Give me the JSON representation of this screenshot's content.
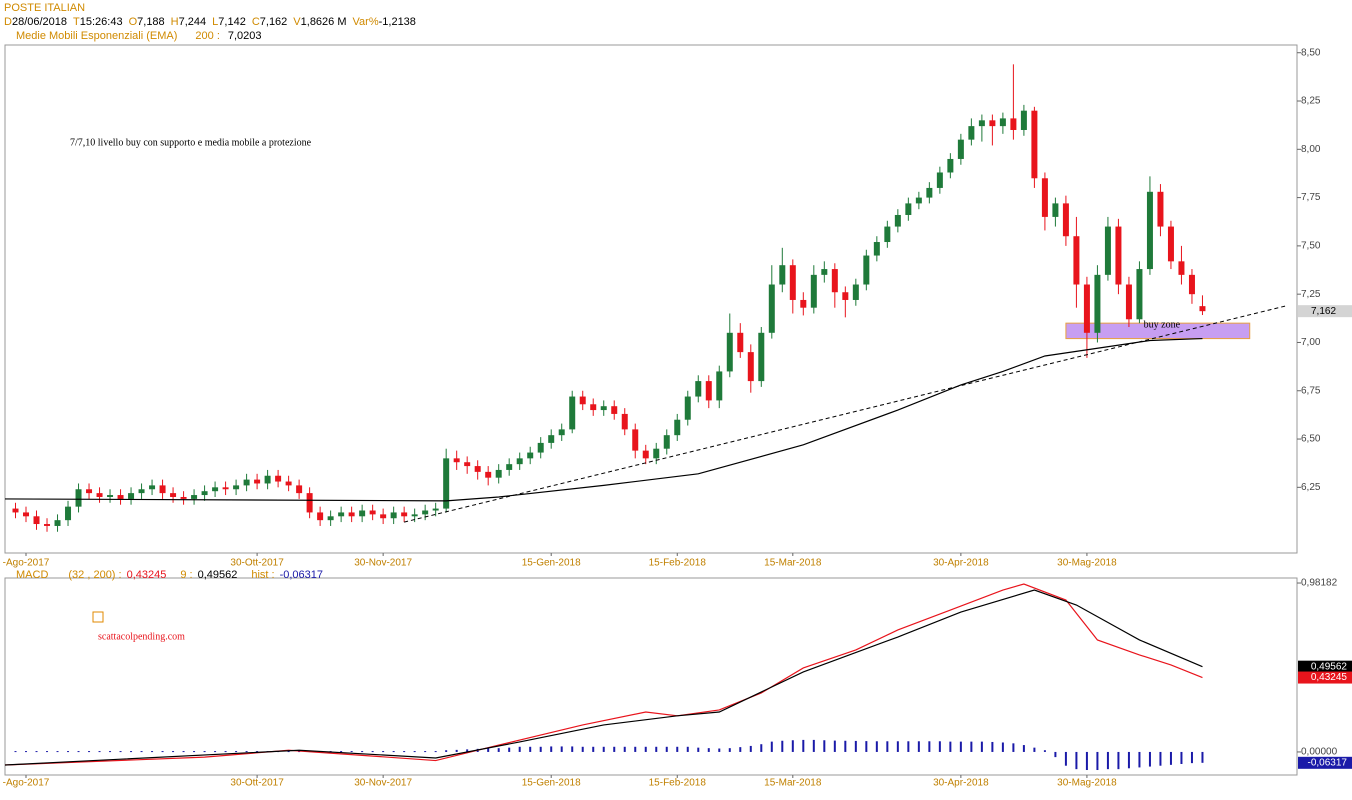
{
  "header": {
    "title": "POSTE ITALIAN",
    "fields": [
      {
        "key": "D",
        "value": "28/06/2018"
      },
      {
        "key": "T",
        "value": "15:26:43"
      },
      {
        "key": "O",
        "value": "7,188"
      },
      {
        "key": "H",
        "value": "7,244"
      },
      {
        "key": "L",
        "value": "7,142"
      },
      {
        "key": "C",
        "value": "7,162"
      },
      {
        "key": "V",
        "value": "1,8626 M"
      },
      {
        "key": "Var%",
        "value": "-1,2138"
      }
    ],
    "ema_label": "Medie Mobili Esponenziali (EMA)",
    "ema_period": "200 :",
    "ema_value": "7,0203",
    "macd_label": "MACD",
    "macd_params": "(32 , 200) :",
    "macd_value": "0,43245",
    "signal_label": "9 :",
    "signal_value": "0,49562",
    "hist_label": "hist :",
    "hist_value": "-0,06317"
  },
  "chart_data": [
    {
      "type": "candlestick",
      "up_color": "#1f7a3a",
      "down_color": "#e8141c",
      "xlim": [
        -1,
        122
      ],
      "ylim": [
        5.91,
        8.54
      ],
      "xticks": [
        {
          "value": 1,
          "label": "-Ago-2017"
        },
        {
          "value": 23,
          "label": "30-Ott-2017"
        },
        {
          "value": 35,
          "label": "30-Nov-2017"
        },
        {
          "value": 51,
          "label": "15-Gen-2018"
        },
        {
          "value": 63,
          "label": "15-Feb-2018"
        },
        {
          "value": 74,
          "label": "15-Mar-2018"
        },
        {
          "value": 90,
          "label": "30-Apr-2018"
        },
        {
          "value": 102,
          "label": "30-Mag-2018"
        }
      ],
      "yticks": [
        {
          "value": 6.25,
          "label": "6,25"
        },
        {
          "value": 6.5,
          "label": "6,50"
        },
        {
          "value": 6.75,
          "label": "6,75"
        },
        {
          "value": 7,
          "label": "7,00"
        },
        {
          "value": 7.25,
          "label": "7,25"
        },
        {
          "value": 7.5,
          "label": "7,50"
        },
        {
          "value": 7.75,
          "label": "7,75"
        },
        {
          "value": 8,
          "label": "8,00"
        },
        {
          "value": 8.25,
          "label": "8,25"
        },
        {
          "value": 8.5,
          "label": "8,50"
        }
      ],
      "ohlc": [
        [
          6.14,
          6.17,
          6.09,
          6.12
        ],
        [
          6.12,
          6.15,
          6.07,
          6.1
        ],
        [
          6.1,
          6.13,
          6.03,
          6.06
        ],
        [
          6.06,
          6.09,
          6.02,
          6.05
        ],
        [
          6.05,
          6.11,
          6.02,
          6.08
        ],
        [
          6.08,
          6.18,
          6.05,
          6.15
        ],
        [
          6.15,
          6.27,
          6.12,
          6.24
        ],
        [
          6.24,
          6.27,
          6.19,
          6.22
        ],
        [
          6.22,
          6.25,
          6.17,
          6.2
        ],
        [
          6.2,
          6.24,
          6.17,
          6.21
        ],
        [
          6.21,
          6.24,
          6.16,
          6.19
        ],
        [
          6.19,
          6.25,
          6.16,
          6.22
        ],
        [
          6.22,
          6.27,
          6.19,
          6.24
        ],
        [
          6.24,
          6.29,
          6.21,
          6.26
        ],
        [
          6.26,
          6.29,
          6.19,
          6.22
        ],
        [
          6.22,
          6.25,
          6.17,
          6.2
        ],
        [
          6.2,
          6.23,
          6.16,
          6.19
        ],
        [
          6.19,
          6.24,
          6.16,
          6.21
        ],
        [
          6.21,
          6.26,
          6.18,
          6.23
        ],
        [
          6.23,
          6.28,
          6.2,
          6.25
        ],
        [
          6.25,
          6.28,
          6.21,
          6.24
        ],
        [
          6.24,
          6.29,
          6.21,
          6.26
        ],
        [
          6.26,
          6.32,
          6.23,
          6.29
        ],
        [
          6.29,
          6.32,
          6.24,
          6.27
        ],
        [
          6.27,
          6.34,
          6.24,
          6.31
        ],
        [
          6.31,
          6.34,
          6.25,
          6.28
        ],
        [
          6.28,
          6.31,
          6.23,
          6.26
        ],
        [
          6.26,
          6.29,
          6.19,
          6.22
        ],
        [
          6.22,
          6.25,
          6.09,
          6.12
        ],
        [
          6.12,
          6.15,
          6.05,
          6.08
        ],
        [
          6.08,
          6.13,
          6.05,
          6.1
        ],
        [
          6.1,
          6.15,
          6.07,
          6.12
        ],
        [
          6.12,
          6.15,
          6.07,
          6.1
        ],
        [
          6.1,
          6.16,
          6.07,
          6.13
        ],
        [
          6.13,
          6.16,
          6.08,
          6.11
        ],
        [
          6.11,
          6.14,
          6.06,
          6.09
        ],
        [
          6.09,
          6.15,
          6.06,
          6.12
        ],
        [
          6.12,
          6.15,
          6.07,
          6.1
        ],
        [
          6.1,
          6.14,
          6.07,
          6.11
        ],
        [
          6.11,
          6.16,
          6.08,
          6.13
        ],
        [
          6.13,
          6.17,
          6.1,
          6.14
        ],
        [
          6.14,
          6.45,
          6.12,
          6.4
        ],
        [
          6.4,
          6.44,
          6.34,
          6.38
        ],
        [
          6.38,
          6.41,
          6.32,
          6.36
        ],
        [
          6.36,
          6.39,
          6.29,
          6.33
        ],
        [
          6.33,
          6.36,
          6.26,
          6.3
        ],
        [
          6.3,
          6.37,
          6.27,
          6.34
        ],
        [
          6.34,
          6.4,
          6.31,
          6.37
        ],
        [
          6.37,
          6.43,
          6.34,
          6.4
        ],
        [
          6.4,
          6.46,
          6.37,
          6.43
        ],
        [
          6.43,
          6.51,
          6.4,
          6.48
        ],
        [
          6.48,
          6.55,
          6.45,
          6.52
        ],
        [
          6.52,
          6.58,
          6.49,
          6.55
        ],
        [
          6.55,
          6.75,
          6.53,
          6.72
        ],
        [
          6.72,
          6.75,
          6.65,
          6.68
        ],
        [
          6.68,
          6.71,
          6.62,
          6.65
        ],
        [
          6.65,
          6.7,
          6.62,
          6.67
        ],
        [
          6.67,
          6.7,
          6.6,
          6.63
        ],
        [
          6.63,
          6.66,
          6.52,
          6.55
        ],
        [
          6.55,
          6.58,
          6.4,
          6.44
        ],
        [
          6.44,
          6.47,
          6.37,
          6.4
        ],
        [
          6.4,
          6.48,
          6.37,
          6.45
        ],
        [
          6.45,
          6.55,
          6.42,
          6.52
        ],
        [
          6.52,
          6.63,
          6.49,
          6.6
        ],
        [
          6.6,
          6.75,
          6.57,
          6.72
        ],
        [
          6.72,
          6.83,
          6.69,
          6.8
        ],
        [
          6.8,
          6.83,
          6.66,
          6.7
        ],
        [
          6.7,
          6.88,
          6.66,
          6.85
        ],
        [
          6.85,
          7.15,
          6.82,
          7.05
        ],
        [
          7.05,
          7.1,
          6.92,
          6.95
        ],
        [
          6.95,
          6.99,
          6.74,
          6.8
        ],
        [
          6.8,
          7.08,
          6.77,
          7.05
        ],
        [
          7.05,
          7.4,
          7.02,
          7.3
        ],
        [
          7.3,
          7.49,
          7.26,
          7.4
        ],
        [
          7.4,
          7.43,
          7.15,
          7.22
        ],
        [
          7.22,
          7.26,
          7.14,
          7.18
        ],
        [
          7.18,
          7.4,
          7.15,
          7.35
        ],
        [
          7.35,
          7.42,
          7.31,
          7.38
        ],
        [
          7.38,
          7.41,
          7.18,
          7.26
        ],
        [
          7.26,
          7.29,
          7.13,
          7.22
        ],
        [
          7.22,
          7.33,
          7.19,
          7.3
        ],
        [
          7.3,
          7.48,
          7.27,
          7.45
        ],
        [
          7.45,
          7.55,
          7.42,
          7.52
        ],
        [
          7.52,
          7.63,
          7.49,
          7.6
        ],
        [
          7.6,
          7.69,
          7.57,
          7.66
        ],
        [
          7.66,
          7.75,
          7.63,
          7.72
        ],
        [
          7.72,
          7.78,
          7.69,
          7.75
        ],
        [
          7.75,
          7.83,
          7.72,
          7.8
        ],
        [
          7.8,
          7.91,
          7.77,
          7.88
        ],
        [
          7.88,
          7.98,
          7.85,
          7.95
        ],
        [
          7.95,
          8.08,
          7.92,
          8.05
        ],
        [
          8.05,
          8.16,
          8.02,
          8.12
        ],
        [
          8.12,
          8.18,
          8.04,
          8.15
        ],
        [
          8.15,
          8.18,
          8.02,
          8.12
        ],
        [
          8.12,
          8.19,
          8.08,
          8.16
        ],
        [
          8.16,
          8.44,
          8.05,
          8.1
        ],
        [
          8.1,
          8.23,
          8.07,
          8.2
        ],
        [
          8.2,
          8.22,
          7.8,
          7.85
        ],
        [
          7.85,
          7.88,
          7.58,
          7.65
        ],
        [
          7.65,
          7.75,
          7.6,
          7.72
        ],
        [
          7.72,
          7.76,
          7.5,
          7.55
        ],
        [
          7.55,
          7.65,
          7.18,
          7.3
        ],
        [
          7.3,
          7.34,
          6.92,
          7.05
        ],
        [
          7.05,
          7.4,
          7.0,
          7.35
        ],
        [
          7.35,
          7.65,
          7.32,
          7.6
        ],
        [
          7.6,
          7.64,
          7.25,
          7.3
        ],
        [
          7.3,
          7.34,
          7.08,
          7.12
        ],
        [
          7.12,
          7.42,
          7.1,
          7.38
        ],
        [
          7.38,
          7.86,
          7.35,
          7.78
        ],
        [
          7.78,
          7.82,
          7.55,
          7.6
        ],
        [
          7.6,
          7.63,
          7.38,
          7.42
        ],
        [
          7.42,
          7.5,
          7.3,
          7.35
        ],
        [
          7.35,
          7.38,
          7.2,
          7.25
        ],
        [
          7.188,
          7.244,
          7.142,
          7.162
        ]
      ],
      "ema": {
        "color": "#000000",
        "x": [
          -1,
          41,
          46,
          56,
          65,
          75,
          84,
          90,
          94,
          98,
          103,
          108,
          113
        ],
        "values": [
          6.19,
          6.18,
          6.2,
          6.26,
          6.32,
          6.47,
          6.65,
          6.78,
          6.85,
          6.93,
          6.97,
          7.01,
          7.0203
        ]
      },
      "trendline": {
        "color": "#000000",
        "x": [
          37,
          121
        ],
        "values": [
          6.07,
          7.19
        ]
      },
      "buy_zone": {
        "label": "buy zone",
        "color": "#c79ef2",
        "x": [
          100,
          117.5
        ],
        "range": [
          7.02,
          7.1
        ]
      },
      "annotation": "7/7,10 livello buy con supporto e media mobile a protezione",
      "last_price": {
        "value": 7.162,
        "label": "7,162"
      }
    },
    {
      "type": "macd",
      "xlim": [
        -1,
        122
      ],
      "ylim": [
        -0.134,
        1.011
      ],
      "xticks": [
        {
          "value": 1,
          "label": "-Ago-2017"
        },
        {
          "value": 23,
          "label": "30-Ott-2017"
        },
        {
          "value": 35,
          "label": "30-Nov-2017"
        },
        {
          "value": 51,
          "label": "15-Gen-2018"
        },
        {
          "value": 63,
          "label": "15-Feb-2018"
        },
        {
          "value": 74,
          "label": "15-Mar-2018"
        },
        {
          "value": 90,
          "label": "30-Apr-2018"
        },
        {
          "value": 102,
          "label": "30-Mag-2018"
        }
      ],
      "yticks": [
        {
          "value": 0,
          "label": "0,00000"
        },
        {
          "value": 0.98182,
          "label": "0,98182"
        }
      ],
      "series": [
        {
          "color": "#e8141c",
          "x": [
            -1,
            18,
            26,
            40,
            46,
            54,
            60,
            63,
            67,
            71,
            75,
            80,
            84,
            89,
            94,
            96,
            100,
            103,
            107,
            110,
            113
          ],
          "values": [
            -0.076,
            -0.03,
            0.01,
            -0.05,
            0.04,
            0.157,
            0.232,
            0.21,
            0.244,
            0.343,
            0.488,
            0.593,
            0.709,
            0.825,
            0.941,
            0.976,
            0.883,
            0.651,
            0.564,
            0.506,
            0.43245
          ]
        },
        {
          "color": "#000000",
          "x": [
            -1,
            27,
            40,
            48,
            56,
            63,
            67,
            75,
            84,
            90,
            97,
            101,
            107,
            113
          ],
          "values": [
            -0.076,
            0.01,
            -0.035,
            0.058,
            0.157,
            0.21,
            0.232,
            0.465,
            0.668,
            0.813,
            0.941,
            0.854,
            0.651,
            0.49562
          ]
        }
      ],
      "hist": {
        "color": "#1a1aa8",
        "values": [
          0.005,
          0.005,
          0.005,
          0.005,
          0.005,
          0.005,
          0.005,
          0.005,
          0.005,
          0.005,
          0.005,
          0.005,
          0.005,
          0.005,
          0.005,
          0.005,
          0.005,
          0.005,
          0.005,
          0.005,
          0.005,
          0.005,
          0.005,
          0.005,
          0.005,
          0.005,
          0.005,
          0.005,
          0.005,
          0.005,
          0.005,
          0.005,
          0.005,
          0.005,
          0.005,
          0.005,
          0.005,
          0.005,
          0.005,
          0.005,
          0.005,
          0.01,
          0.012,
          0.015,
          0.018,
          0.02,
          0.022,
          0.025,
          0.03,
          0.03,
          0.03,
          0.032,
          0.032,
          0.032,
          0.03,
          0.03,
          0.03,
          0.03,
          0.03,
          0.03,
          0.03,
          0.03,
          0.03,
          0.03,
          0.03,
          0.025,
          0.022,
          0.02,
          0.022,
          0.028,
          0.035,
          0.045,
          0.06,
          0.065,
          0.068,
          0.07,
          0.07,
          0.068,
          0.066,
          0.065,
          0.064,
          0.063,
          0.062,
          0.062,
          0.062,
          0.062,
          0.062,
          0.062,
          0.062,
          0.06,
          0.06,
          0.06,
          0.06,
          0.058,
          0.055,
          0.05,
          0.04,
          0.025,
          0.01,
          -0.03,
          -0.08,
          -0.1,
          -0.105,
          -0.105,
          -0.1,
          -0.1,
          -0.095,
          -0.09,
          -0.085,
          -0.08,
          -0.075,
          -0.07,
          -0.065,
          -0.06317
        ]
      },
      "tags": [
        {
          "value": 0.49562,
          "label": "0,49562",
          "fill": "#000000",
          "text": "#ffffff"
        },
        {
          "value": 0.43245,
          "label": "0,43245",
          "fill": "#e8141c",
          "text": "#ffffff"
        },
        {
          "value": -0.06317,
          "label": "-0,06317",
          "fill": "#1a1aa8",
          "text": "#ffffff"
        }
      ],
      "watermark": "scattacolpending.com"
    }
  ]
}
